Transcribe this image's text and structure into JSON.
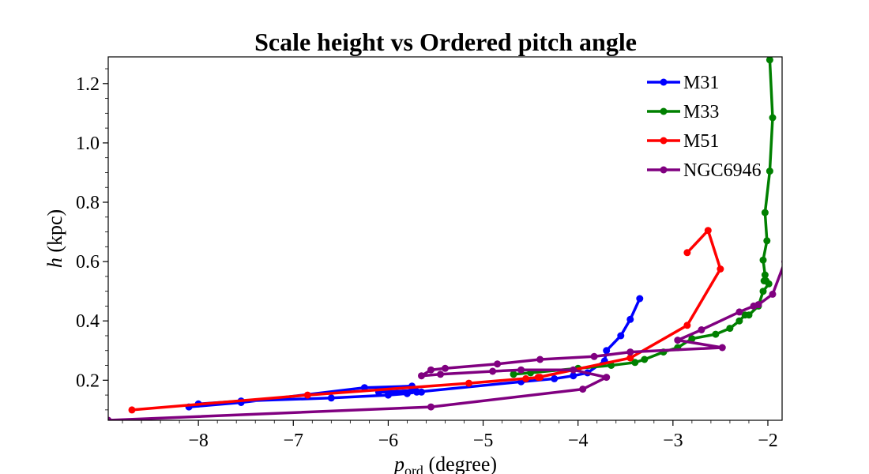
{
  "chart_data": {
    "type": "line",
    "title": "Scale height vs Ordered pitch angle",
    "xlabel": {
      "main": "p",
      "sub": "ord",
      "rest": " (degree)"
    },
    "ylabel": {
      "main": "h",
      "rest": " (kpc)"
    },
    "xlim": [
      -8.95,
      -1.85
    ],
    "ylim": [
      0.065,
      1.29
    ],
    "xticks": [
      -8,
      -7,
      -6,
      -5,
      -4,
      -3,
      -2
    ],
    "xtick_labels": [
      "−8",
      "−7",
      "−6",
      "−5",
      "−4",
      "−3",
      "−2"
    ],
    "yticks": [
      0.2,
      0.4,
      0.6,
      0.8,
      1.0,
      1.2
    ],
    "ytick_labels": [
      "0.2",
      "0.4",
      "0.6",
      "0.8",
      "1.0",
      "1.2"
    ],
    "grid": false,
    "legend_position": "top-right",
    "series": [
      {
        "name": "M31",
        "color": "#0000ff",
        "points": [
          [
            -3.35,
            0.475
          ],
          [
            -3.45,
            0.405
          ],
          [
            -3.55,
            0.35
          ],
          [
            -3.7,
            0.3
          ],
          [
            -3.72,
            0.265
          ],
          [
            -3.9,
            0.225
          ],
          [
            -4.05,
            0.215
          ],
          [
            -4.25,
            0.205
          ],
          [
            -4.6,
            0.195
          ],
          [
            -5.7,
            0.16
          ],
          [
            -5.8,
            0.155
          ],
          [
            -6.0,
            0.15
          ],
          [
            -6.6,
            0.14
          ],
          [
            -7.55,
            0.13
          ],
          [
            -8.0,
            0.12
          ],
          [
            -8.1,
            0.11
          ],
          [
            -7.55,
            0.125
          ],
          [
            -6.25,
            0.175
          ],
          [
            -5.75,
            0.18
          ],
          [
            -5.65,
            0.16
          ],
          [
            -6.1,
            0.16
          ],
          [
            -5.75,
            0.165
          ]
        ]
      },
      {
        "name": "M33",
        "color": "#008000",
        "points": [
          [
            -1.98,
            1.28
          ],
          [
            -1.95,
            1.085
          ],
          [
            -1.98,
            0.905
          ],
          [
            -2.03,
            0.765
          ],
          [
            -2.01,
            0.67
          ],
          [
            -2.05,
            0.605
          ],
          [
            -2.03,
            0.555
          ],
          [
            -2.02,
            0.535
          ],
          [
            -2.04,
            0.535
          ],
          [
            -1.99,
            0.525
          ],
          [
            -2.05,
            0.5
          ],
          [
            -2.1,
            0.45
          ],
          [
            -2.2,
            0.42
          ],
          [
            -2.24,
            0.42
          ],
          [
            -2.3,
            0.4
          ],
          [
            -2.4,
            0.375
          ],
          [
            -2.55,
            0.355
          ],
          [
            -2.8,
            0.34
          ],
          [
            -2.95,
            0.31
          ],
          [
            -3.1,
            0.295
          ],
          [
            -3.3,
            0.27
          ],
          [
            -3.4,
            0.26
          ],
          [
            -3.65,
            0.25
          ],
          [
            -4.0,
            0.24
          ],
          [
            -4.5,
            0.225
          ],
          [
            -4.68,
            0.22
          ]
        ]
      },
      {
        "name": "M51",
        "color": "#ff0000",
        "points": [
          [
            -2.85,
            0.63
          ],
          [
            -2.63,
            0.705
          ],
          [
            -2.5,
            0.575
          ],
          [
            -2.85,
            0.385
          ],
          [
            -3.45,
            0.275
          ],
          [
            -4.42,
            0.21
          ],
          [
            -4.55,
            0.205
          ],
          [
            -4.4,
            0.21
          ],
          [
            -5.15,
            0.19
          ],
          [
            -6.85,
            0.15
          ],
          [
            -8.7,
            0.1
          ]
        ]
      },
      {
        "name": "NGC6946",
        "color": "#800080",
        "points": [
          [
            -1.82,
            0.6
          ],
          [
            -1.95,
            0.49
          ],
          [
            -2.1,
            0.455
          ],
          [
            -2.15,
            0.45
          ],
          [
            -2.3,
            0.43
          ],
          [
            -2.7,
            0.37
          ],
          [
            -2.95,
            0.335
          ],
          [
            -2.48,
            0.31
          ],
          [
            -3.45,
            0.295
          ],
          [
            -3.83,
            0.28
          ],
          [
            -4.4,
            0.27
          ],
          [
            -4.85,
            0.255
          ],
          [
            -5.4,
            0.24
          ],
          [
            -5.55,
            0.235
          ],
          [
            -5.65,
            0.215
          ],
          [
            -5.45,
            0.22
          ],
          [
            -4.9,
            0.23
          ],
          [
            -4.6,
            0.235
          ],
          [
            -4.05,
            0.235
          ],
          [
            -3.7,
            0.21
          ],
          [
            -3.95,
            0.17
          ],
          [
            -5.55,
            0.11
          ],
          [
            -8.95,
            0.065
          ]
        ]
      }
    ]
  }
}
